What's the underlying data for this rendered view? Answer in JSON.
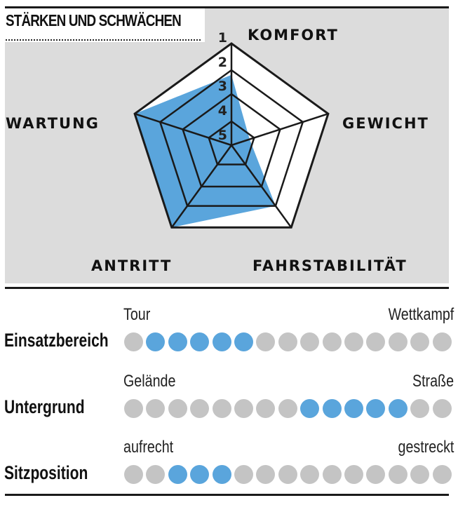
{
  "section_title": "STÄRKEN UND SCHWÄCHEN",
  "chart_data": [
    {
      "type": "radar",
      "axes": [
        "KOMFORT",
        "GEWICHT",
        "FAHRSTABILITÄT",
        "ANTRITT",
        "WARTUNG"
      ],
      "scale_labels": [
        "1",
        "2",
        "3",
        "4",
        "5"
      ],
      "scale_note_best": 1,
      "values": [
        2.2,
        4.2,
        2,
        1,
        1
      ],
      "range": [
        1,
        5
      ],
      "fill_color": "#5aa5dc",
      "background": "#dcdcdc"
    },
    {
      "type": "dot-scale",
      "dot_count": 15,
      "active_color": "#5aa5dc",
      "inactive_color": "#c4c4c4",
      "rows": [
        {
          "label": "Einsatzbereich",
          "left": "Tour",
          "right": "Wettkampf",
          "active": [
            2,
            3,
            4,
            5,
            6
          ]
        },
        {
          "label": "Untergrund",
          "left": "Gelände",
          "right": "Straße",
          "active": [
            9,
            10,
            11,
            12,
            13
          ]
        },
        {
          "label": "Sitzposition",
          "left": "aufrecht",
          "right": "gestreckt",
          "active": [
            3,
            4,
            5
          ]
        }
      ]
    }
  ]
}
